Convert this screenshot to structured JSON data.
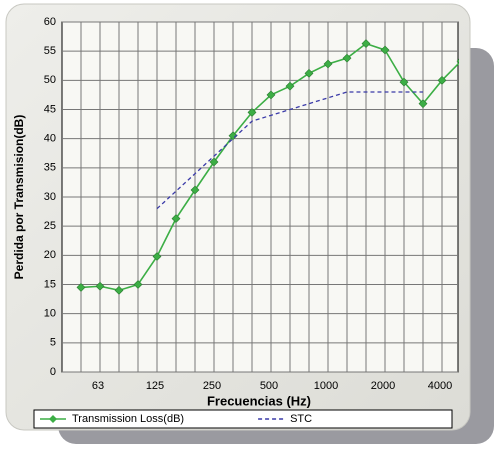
{
  "chart_data": {
    "type": "line",
    "x_label": "Frecuencias (Hz)",
    "y_label": "Perdida por Transmision(dB)",
    "categories": [
      null,
      "63",
      null,
      null,
      "125",
      null,
      null,
      "250",
      null,
      null,
      "500",
      null,
      null,
      "1000",
      null,
      null,
      "2000",
      null,
      null,
      "4000",
      null
    ],
    "series": [
      {
        "name": "Transmission Loss(dB)",
        "color": "#3cae45",
        "marker": "diamond",
        "values": [
          14.5,
          14.7,
          14,
          15,
          19.8,
          26.3,
          31.2,
          36,
          40.5,
          44.5,
          47.5,
          49,
          51.2,
          52.8,
          53.8,
          56.3,
          55.2,
          49.7,
          46,
          50,
          53.3
        ]
      },
      {
        "name": "STC",
        "color": "#3a3aa8",
        "dashed": true,
        "values": [
          null,
          null,
          null,
          null,
          28,
          31,
          34,
          37,
          40,
          43,
          44,
          45,
          46,
          47,
          48,
          48,
          48,
          48,
          48,
          null,
          null
        ]
      }
    ],
    "ylim": [
      0,
      60
    ],
    "yticks": [
      0,
      5,
      10,
      15,
      20,
      25,
      30,
      35,
      40,
      45,
      50,
      55,
      60
    ],
    "grid": true
  }
}
